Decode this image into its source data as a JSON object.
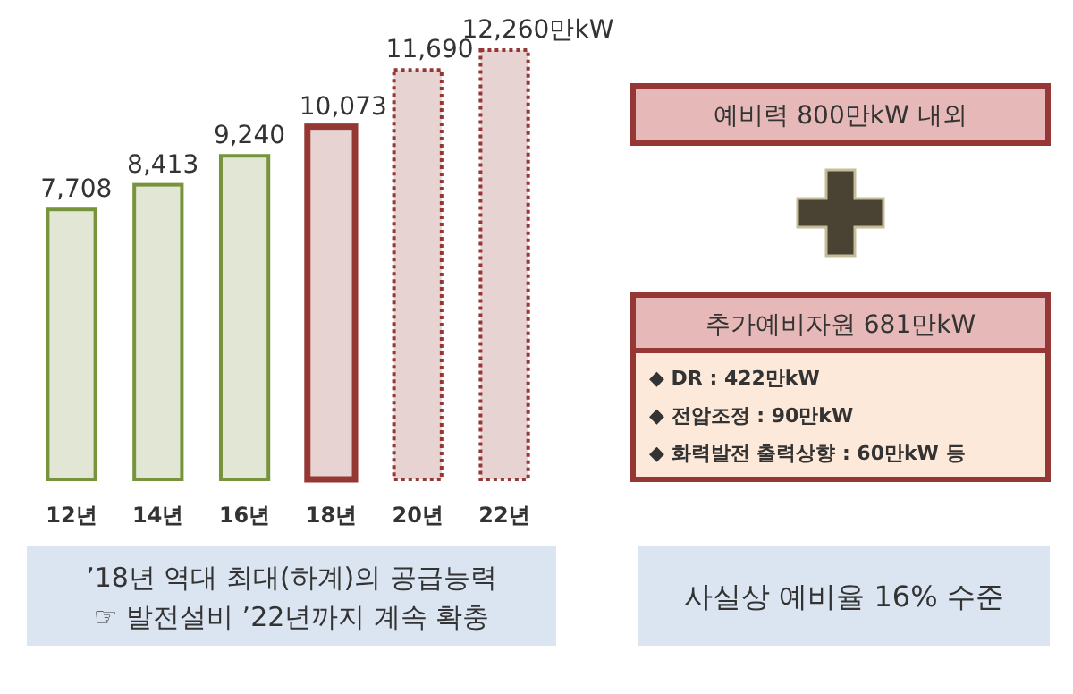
{
  "chart_data": [
    {
      "type": "bar",
      "categories": [
        "12년",
        "14년",
        "16년",
        "18년",
        "20년",
        "22년"
      ],
      "tick_labels": "x",
      "data_labels": true,
      "series": [
        {
          "color": "#77933c",
          "line_style": "solid",
          "values": [
            7708,
            8413,
            9240,
            null,
            null,
            null
          ],
          "value_labels": [
            "7,708",
            "8,413",
            "9,240",
            null,
            null,
            null
          ]
        },
        {
          "color": "#953735",
          "line_style": "solid",
          "values": [
            null,
            null,
            null,
            10073,
            null,
            null
          ],
          "value_labels": [
            null,
            null,
            null,
            "10,073",
            null,
            null
          ]
        },
        {
          "color": "#953735",
          "line_style": "dotted",
          "values": [
            null,
            null,
            null,
            null,
            11690,
            12260
          ],
          "value_labels": [
            null,
            null,
            null,
            null,
            "11,690",
            "12,260만kW"
          ]
        }
      ],
      "annotations": [
        "’18년 역대 최대(하계)의 공급능력",
        "☞ 발전설비 ’22년까지 계속 확충"
      ]
    },
    {
      "type": "other",
      "annotations": [
        "예비력 800만kW 내외",
        "추가예비자원 681만kW",
        "◆ DR : 422만kW",
        "◆ 전압조정 : 90만kW",
        "◆ 화력발전 출력상향 : 60만kW 등",
        "사실상 예비율 16% 수준"
      ]
    }
  ]
}
